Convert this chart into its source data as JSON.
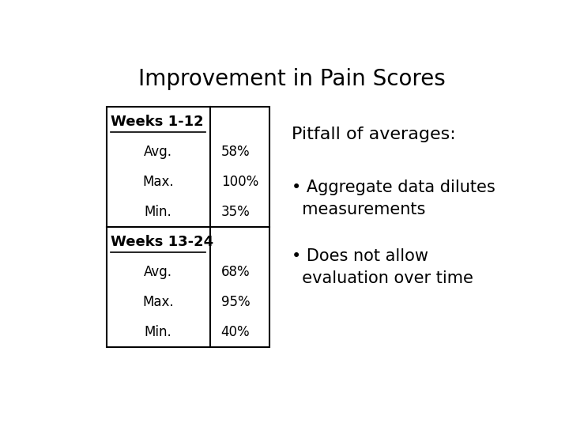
{
  "title": "Improvement in Pain Scores",
  "title_fontsize": 20,
  "background_color": "#ffffff",
  "table": {
    "section1_header": "Weeks 1-12",
    "section2_header": "Weeks 13-24",
    "s1_rows": [
      {
        "label": "Avg.",
        "value": "58%"
      },
      {
        "label": "Max.",
        "value": "100%"
      },
      {
        "label": "Min.",
        "value": "35%"
      }
    ],
    "s2_rows": [
      {
        "label": "Avg.",
        "value": "68%"
      },
      {
        "label": "Max.",
        "value": "95%"
      },
      {
        "label": "Min.",
        "value": "40%"
      }
    ]
  },
  "right_heading": "Pitfall of averages:",
  "right_bullets": [
    "• Aggregate data dilutes\n  measurements",
    "• Does not allow\n  evaluation over time"
  ],
  "text_color": "#000000",
  "tl": 0.08,
  "tr": 0.45,
  "tt": 0.83,
  "tb": 0.1,
  "col_split": 0.315,
  "n_rows": 8
}
